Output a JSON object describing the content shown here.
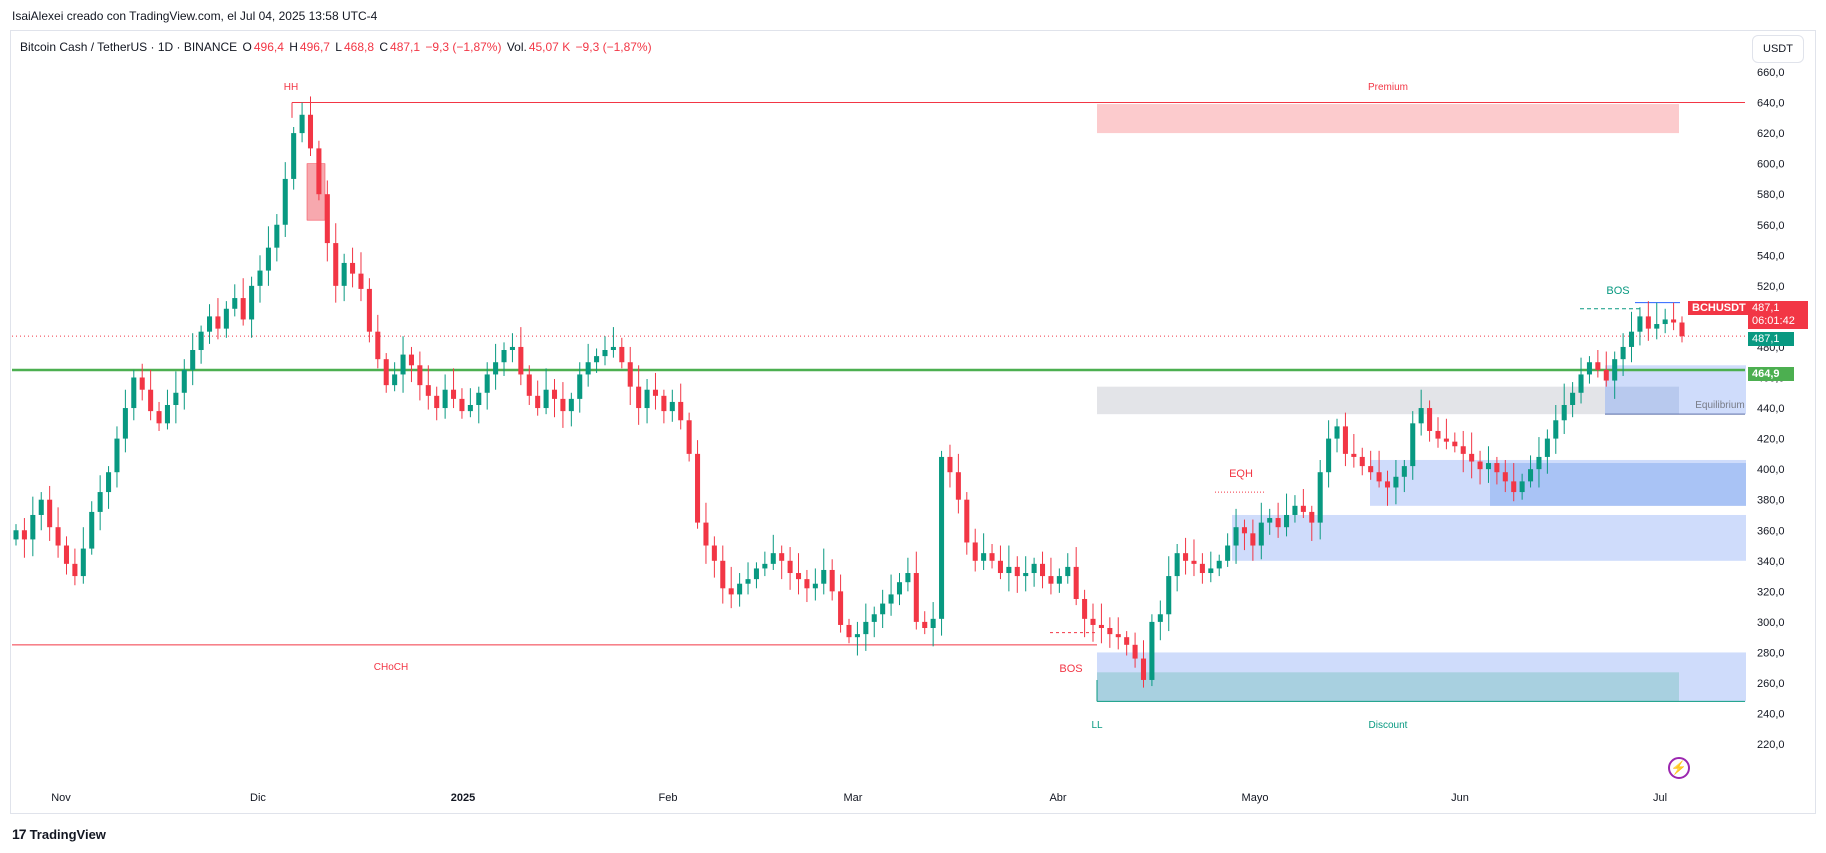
{
  "header": {
    "published_by": "IsaiAlexei creado con TradingView.com, el Jul 04, 2025 13:58 UTC-4"
  },
  "legend": {
    "symbol": "Bitcoin Cash / TetherUS · 1D · BINANCE",
    "open_label": "O",
    "open_value": "496,4",
    "high_label": "H",
    "high_value": "496,7",
    "low_label": "L",
    "low_value": "468,8",
    "close_label": "C",
    "close_value": "487,1",
    "change": "−9,3 (−1,87%)",
    "vol_label": "Vol.",
    "vol_value": "45,07 K",
    "vol_change": "−9,3 (−1,87%)"
  },
  "currency_button": "USDT",
  "price_badges": {
    "symbol_tag": "BCHUSDT",
    "last_price": "487,1",
    "countdown": "06:01:42",
    "price_line": "487,1",
    "level_line": "464,9"
  },
  "footer": {
    "brand": "TradingView",
    "brand_mark": "17"
  },
  "colors": {
    "up": "#089981",
    "down": "#f23645",
    "level": "#4caf50",
    "zone_red": "#fccbcd",
    "zone_blue": "#cfdcfb",
    "zone_teal": "#a8d0e0",
    "zone_gray": "#e3e4e8"
  },
  "chart_data": {
    "type": "candlestick",
    "y_axis_ticks": [
      "660,0",
      "640,0",
      "620,0",
      "600,0",
      "580,0",
      "560,0",
      "540,0",
      "520,0",
      "500,0",
      "480,0",
      "460,0",
      "440,0",
      "420,0",
      "400,0",
      "380,0",
      "360,0",
      "340,0",
      "320,0",
      "300,0",
      "280,0",
      "260,0",
      "240,0",
      "220,0"
    ],
    "ylim": [
      210,
      670
    ],
    "x_axis_labels": [
      "Nov",
      "Dic",
      "2025",
      "Feb",
      "Mar",
      "Abr",
      "Mayo",
      "Jun",
      "Jul"
    ],
    "last_close": 487.1,
    "horizontal_level": 464.9,
    "annotations": [
      "HH",
      "Premium",
      "CHoCH",
      "BOS",
      "LL",
      "Discount",
      "EQH",
      "Equilibrium",
      "BOS"
    ],
    "closes": [
      360,
      354,
      370,
      380,
      362,
      350,
      338,
      330,
      348,
      372,
      385,
      398,
      420,
      440,
      460,
      452,
      438,
      430,
      442,
      450,
      465,
      478,
      490,
      500,
      492,
      505,
      512,
      498,
      520,
      530,
      545,
      560,
      590,
      620,
      632,
      610,
      580,
      548,
      520,
      535,
      528,
      518,
      490,
      472,
      455,
      462,
      475,
      468,
      455,
      448,
      440,
      452,
      446,
      438,
      442,
      450,
      462,
      470,
      478,
      480,
      462,
      448,
      440,
      452,
      446,
      438,
      446,
      462,
      470,
      474,
      478,
      480,
      470,
      454,
      440,
      452,
      448,
      438,
      444,
      432,
      410,
      365,
      350,
      340,
      322,
      318,
      325,
      328,
      335,
      338,
      345,
      340,
      332,
      328,
      322,
      325,
      334,
      320,
      298,
      290,
      292,
      300,
      305,
      312,
      318,
      326,
      332,
      300,
      296,
      302,
      408,
      398,
      380,
      352,
      340,
      345,
      340,
      332,
      336,
      330,
      332,
      338,
      330,
      325,
      330,
      336,
      315,
      302,
      298,
      296,
      292,
      290,
      285,
      276,
      262,
      300,
      305,
      330,
      345,
      340,
      338,
      332,
      335,
      340,
      350,
      362,
      358,
      350,
      365,
      368,
      362,
      370,
      376,
      372,
      365,
      398,
      420,
      428,
      410,
      408,
      402,
      398,
      392,
      388,
      395,
      402,
      430,
      440,
      425,
      420,
      418,
      415,
      410,
      405,
      400,
      404,
      398,
      392,
      385,
      392,
      400,
      408,
      420,
      432,
      442,
      450,
      462,
      470,
      465,
      458,
      472,
      480,
      490,
      500,
      492,
      495,
      498,
      496,
      487
    ],
    "ohlc": []
  }
}
